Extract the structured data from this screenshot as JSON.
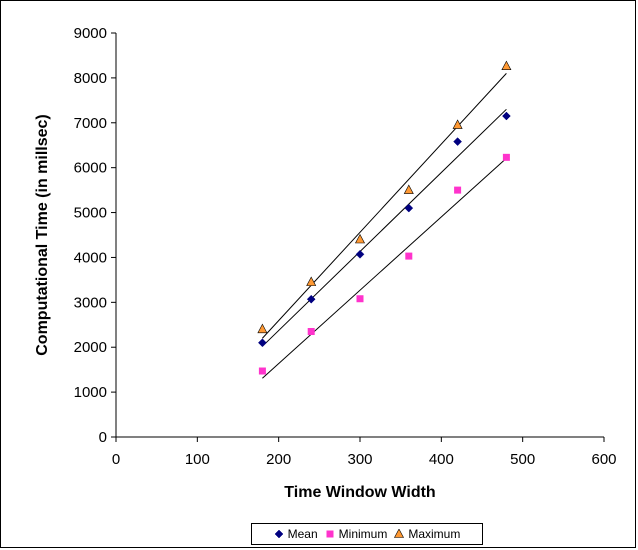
{
  "chart_data": {
    "type": "scatter",
    "title": "",
    "xlabel": "Time Window Width",
    "ylabel": "Computational Time (in millsec)",
    "xlim": [
      0,
      600
    ],
    "ylim": [
      0,
      9000
    ],
    "xticks": [
      0,
      100,
      200,
      300,
      400,
      500,
      600
    ],
    "yticks": [
      0,
      1000,
      2000,
      3000,
      4000,
      5000,
      6000,
      7000,
      8000,
      9000
    ],
    "grid": false,
    "legend_position": "bottom",
    "x": [
      180,
      240,
      300,
      360,
      420,
      480
    ],
    "series": [
      {
        "name": "Mean",
        "marker": "diamond",
        "color": "#000080",
        "values": [
          2100,
          3070,
          4070,
          5100,
          6580,
          7150
        ],
        "trendline": [
          [
            180,
            2020
          ],
          [
            480,
            7300
          ]
        ]
      },
      {
        "name": "Minimum",
        "marker": "square",
        "color": "#ff33cc",
        "values": [
          1470,
          2350,
          3080,
          4030,
          5500,
          6230
        ],
        "trendline": [
          [
            180,
            1310
          ],
          [
            480,
            6210
          ]
        ]
      },
      {
        "name": "Maximum",
        "marker": "triangle",
        "color": "#ff9933",
        "values": [
          2400,
          3450,
          4400,
          5500,
          6950,
          8260
        ],
        "trendline": [
          [
            180,
            2200
          ],
          [
            480,
            8100
          ]
        ]
      }
    ]
  }
}
